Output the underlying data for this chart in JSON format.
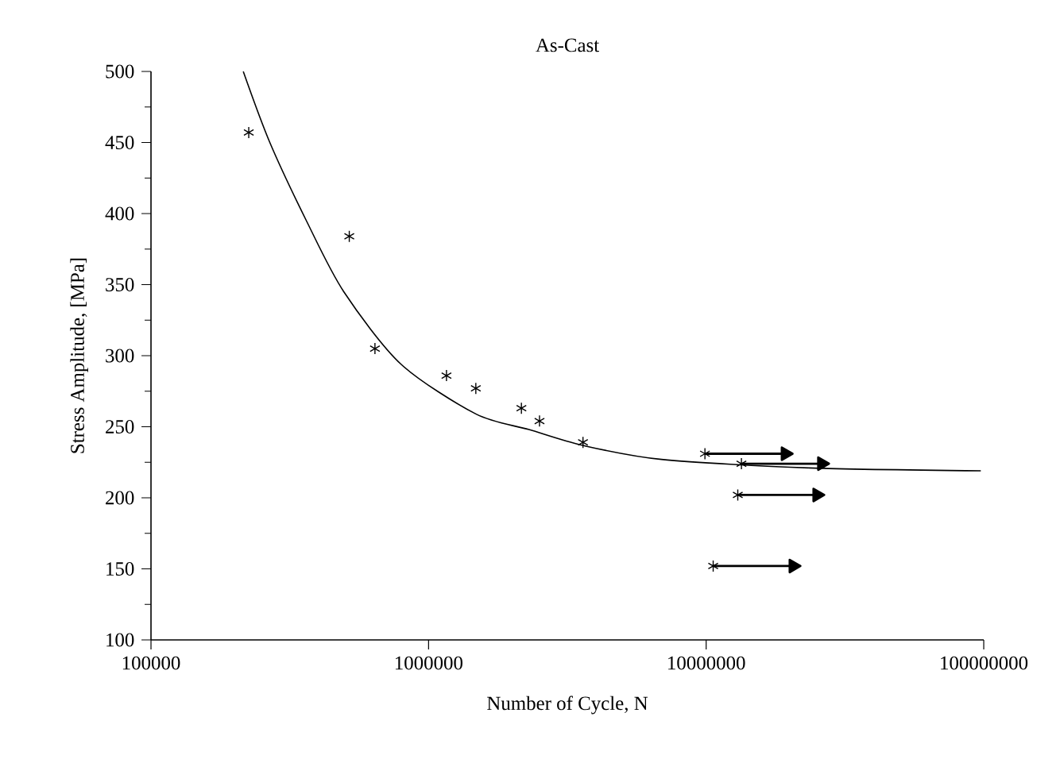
{
  "chart_data": {
    "type": "scatter",
    "title": "As-Cast",
    "xlabel": "Number of Cycle, N",
    "ylabel": "Stress Amplitude, [MPa]",
    "log": "x",
    "xlim": [
      100000,
      100000000
    ],
    "xticks": [
      100000,
      1000000,
      10000000,
      100000000
    ],
    "ylim": [
      100,
      500
    ],
    "yticks": [
      100,
      150,
      200,
      250,
      300,
      350,
      400,
      450,
      500
    ],
    "grid": false,
    "series": [
      {
        "color": "#000000",
        "marker": "cross",
        "x": [
          225000,
          518000,
          641000,
          1160000,
          1480000,
          2160000,
          2510000,
          3600000,
          9900000,
          13400000,
          13000000,
          10600000
        ],
        "values": [
          457,
          384,
          305,
          286,
          277,
          263,
          254,
          239,
          231,
          224,
          202,
          152
        ]
      },
      {
        "type": "line",
        "color": "#000000",
        "marker": "none",
        "x": [
          215000,
          268000,
          365000,
          495000,
          796000,
          1480000,
          2300000,
          3570000,
          6900000,
          23500000,
          97600000
        ],
        "values": [
          500,
          450,
          394,
          345,
          294,
          259,
          248,
          237,
          227,
          221,
          219
        ]
      },
      {
        "type": "line",
        "color": "#000000",
        "marker": "triangle",
        "x": [
          9900000,
          19300000
        ],
        "values": [
          231,
          231
        ]
      },
      {
        "type": "line",
        "color": "#000000",
        "marker": "triangle",
        "x": [
          13400000,
          26100000
        ],
        "values": [
          224,
          224
        ]
      },
      {
        "type": "line",
        "color": "#000000",
        "marker": "triangle",
        "x": [
          13000000,
          25100000
        ],
        "values": [
          202,
          202
        ]
      },
      {
        "type": "line",
        "color": "#000000",
        "marker": "triangle",
        "x": [
          10600000,
          20600000
        ],
        "values": [
          152,
          152
        ]
      }
    ]
  }
}
